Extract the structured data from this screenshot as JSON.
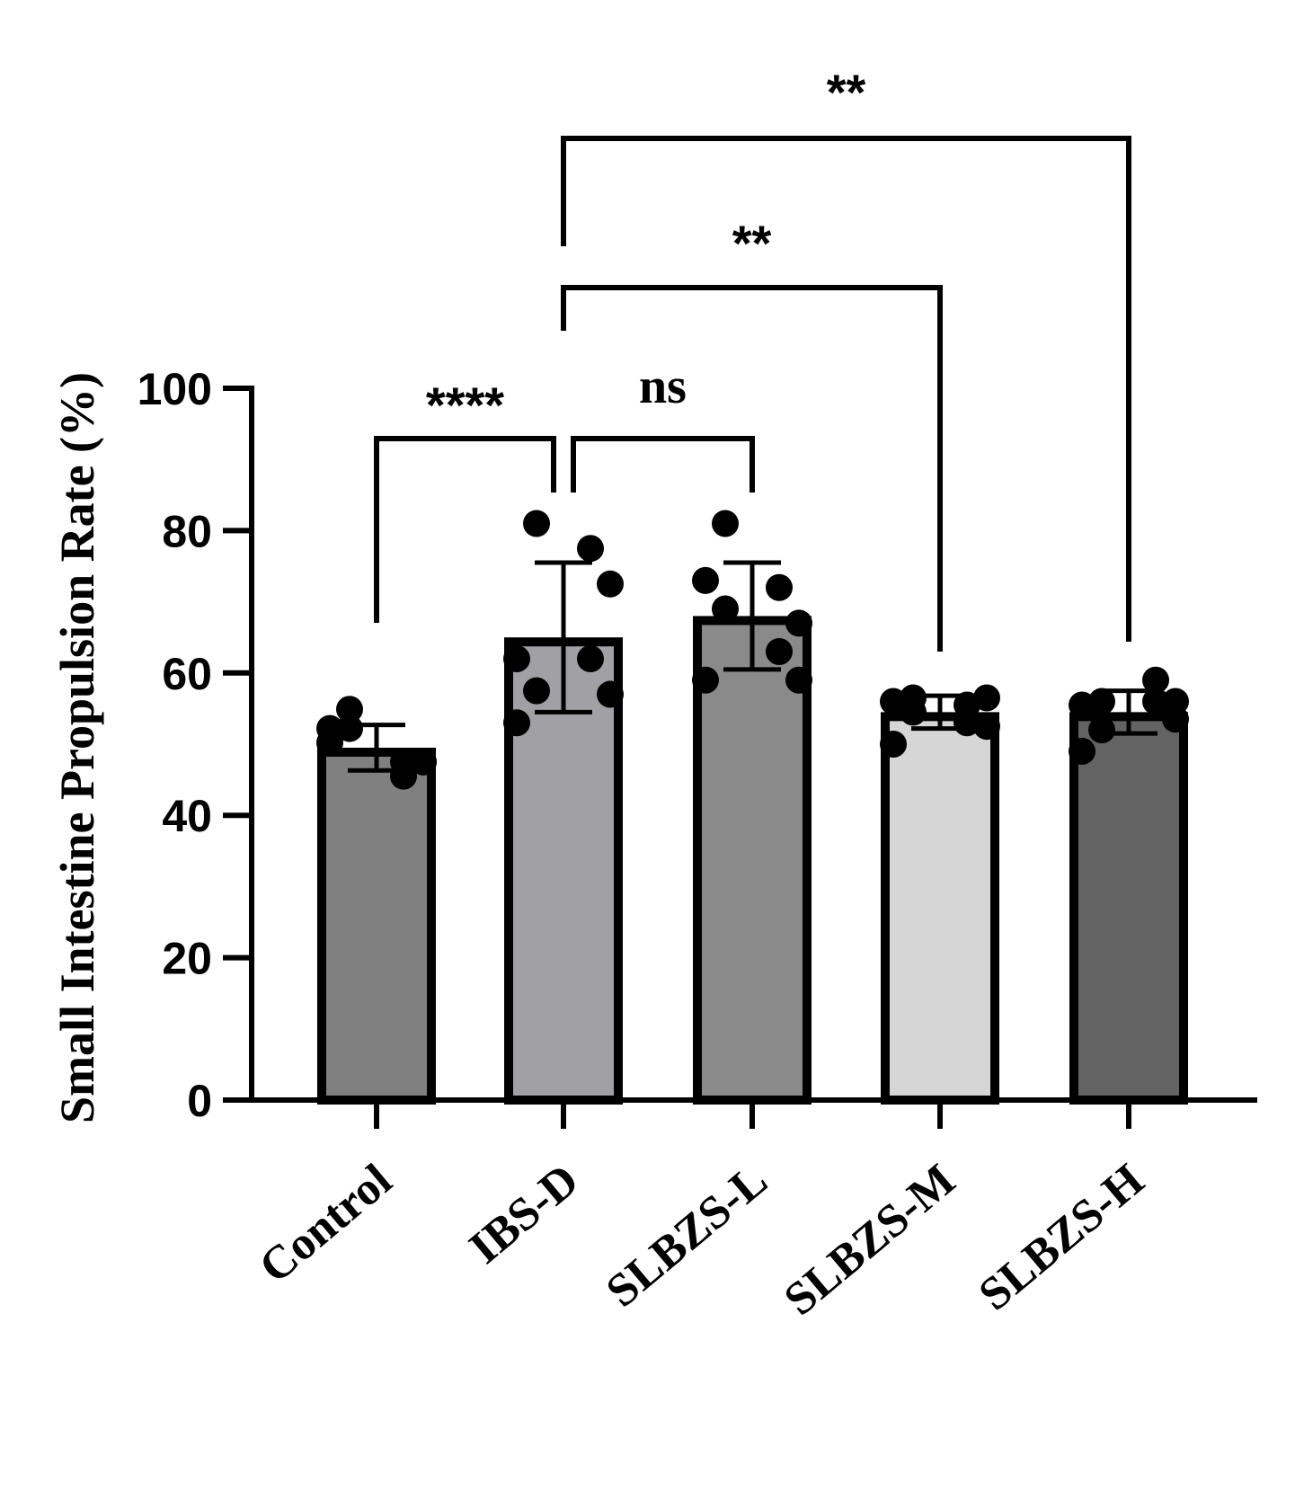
{
  "chart_data": {
    "type": "bar",
    "ylabel": "Small Intestine Propulsion Rate (%)",
    "xlabel": "",
    "ylim": [
      0,
      100
    ],
    "yticks": [
      0,
      20,
      40,
      60,
      80,
      100
    ],
    "grid": false,
    "categories": [
      "Control",
      "IBS-D",
      "SLBZS-L",
      "SLBZS-M",
      "SLBZS-H"
    ],
    "means": [
      49.5,
      65,
      68,
      54.5,
      54.5
    ],
    "sd": [
      3.2,
      10.5,
      7.5,
      2.3,
      3
    ],
    "colors": [
      "#808080",
      "#a1a1a5",
      "#8a8a8a",
      "#d6d6d6",
      "#636363"
    ],
    "points": [
      [
        54.9,
        50.2,
        52.2,
        52.2,
        45.5,
        47.5,
        47.5,
        47.5
      ],
      [
        81,
        62,
        57.5,
        53,
        77.5,
        72.5,
        62,
        57
      ],
      [
        81,
        73,
        69,
        59,
        72,
        67,
        63,
        59
      ],
      [
        56.5,
        56,
        54.5,
        50,
        53,
        52.5,
        55.5,
        56.5
      ],
      [
        56,
        55.5,
        52,
        49,
        59,
        53.5,
        56,
        56
      ]
    ],
    "comparisons": [
      {
        "from": "Control",
        "to": "IBS-D",
        "label": "****"
      },
      {
        "from": "IBS-D",
        "to": "SLBZS-L",
        "label": "ns"
      },
      {
        "from": "IBS-D",
        "to": "SLBZS-M",
        "label": "**"
      },
      {
        "from": "IBS-D",
        "to": "SLBZS-H",
        "label": "**"
      }
    ]
  }
}
